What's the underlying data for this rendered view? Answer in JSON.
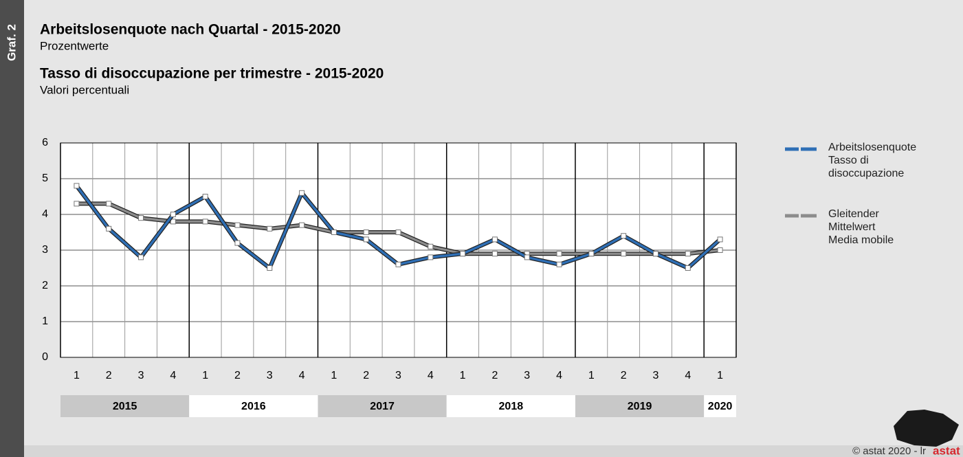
{
  "side_label": "Graf. 2",
  "chart_data": {
    "type": "line",
    "title": "Arbeitslosenquote nach Quartal - 2015-2020",
    "subtitle": "Prozentwerte",
    "title_it": "Tasso di disoccupazione per trimestre - 2015-2020",
    "subtitle_it": "Valori percentuali",
    "categories": [
      "1",
      "2",
      "3",
      "4",
      "1",
      "2",
      "3",
      "4",
      "1",
      "2",
      "3",
      "4",
      "1",
      "2",
      "3",
      "4",
      "1",
      "2",
      "3",
      "4",
      "1"
    ],
    "years": [
      "2015",
      "2016",
      "2017",
      "2018",
      "2019",
      "2020"
    ],
    "series": [
      {
        "name": "Arbeitslosenquote\nTasso di\ndisoccupazione",
        "color": "#2f6fb5",
        "values": [
          4.8,
          3.6,
          2.8,
          4.0,
          4.5,
          3.2,
          2.5,
          4.6,
          3.5,
          3.3,
          2.6,
          2.8,
          2.9,
          3.3,
          2.8,
          2.6,
          2.9,
          3.4,
          2.9,
          2.5,
          3.3
        ]
      },
      {
        "name": "Gleitender\nMittelwert\nMedia mobile",
        "color": "#8c8c8c",
        "values": [
          4.3,
          4.3,
          3.9,
          3.8,
          3.8,
          3.7,
          3.6,
          3.7,
          3.5,
          3.5,
          3.5,
          3.1,
          2.9,
          2.9,
          2.9,
          2.9,
          2.9,
          2.9,
          2.9,
          2.9,
          3.0
        ]
      }
    ],
    "ylim": [
      0,
      6
    ],
    "yticks": [
      0,
      1,
      2,
      3,
      4,
      5,
      6
    ],
    "grid": true
  },
  "footer": "© astat 2020 - lr",
  "logo": "astat"
}
